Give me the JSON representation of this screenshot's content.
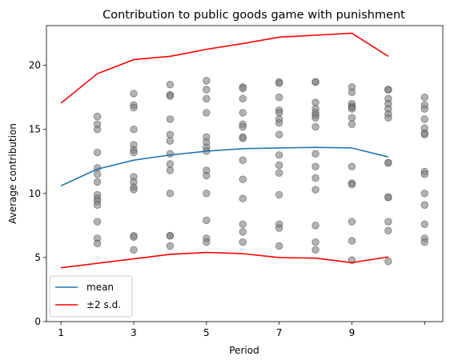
{
  "chart_data": {
    "type": "line",
    "title": "Contribution to public goods game with punishment",
    "xlabel": "Period",
    "ylabel": "Average contribution",
    "xlim": [
      0.6,
      11.5
    ],
    "ylim": [
      0,
      23.1
    ],
    "xticks": [
      1,
      3,
      5,
      7,
      9,
      11
    ],
    "xtick_labels": [
      "1",
      "3",
      "5",
      "7",
      "9",
      ""
    ],
    "yticks": [
      0,
      5,
      10,
      15,
      20
    ],
    "grid": false,
    "legend_position": "lower-left",
    "series": [
      {
        "name": "mean",
        "color": "#1f77b4",
        "x": [
          1,
          2,
          3,
          4,
          5,
          6,
          7,
          8,
          9,
          10
        ],
        "y": [
          10.6,
          11.9,
          12.6,
          13.0,
          13.3,
          13.5,
          13.55,
          13.6,
          13.55,
          12.85
        ]
      },
      {
        "name": "±2 s.d.",
        "color": "#ff0000",
        "x": [
          1,
          2,
          3,
          4,
          5,
          6,
          7,
          8,
          9,
          10
        ],
        "y": [
          17.05,
          19.35,
          20.45,
          20.7,
          21.25,
          21.7,
          22.2,
          22.35,
          22.5,
          20.7
        ]
      },
      {
        "name": "",
        "color": "#ff0000",
        "x": [
          1,
          2,
          3,
          4,
          5,
          6,
          7,
          8,
          9,
          10
        ],
        "y": [
          4.2,
          4.55,
          4.9,
          5.25,
          5.4,
          5.3,
          5.0,
          4.95,
          4.6,
          5.05
        ]
      }
    ],
    "scatter": {
      "color": "#808080",
      "opacity": 0.6,
      "points": [
        [
          2,
          16.0
        ],
        [
          2,
          15.4
        ],
        [
          2,
          15.0
        ],
        [
          2,
          13.2
        ],
        [
          2,
          12.0
        ],
        [
          2,
          11.5
        ],
        [
          2,
          10.9
        ],
        [
          2,
          9.9
        ],
        [
          2,
          9.6
        ],
        [
          2,
          9.4
        ],
        [
          2,
          9.1
        ],
        [
          2,
          7.8
        ],
        [
          2,
          6.5
        ],
        [
          2,
          6.1
        ],
        [
          3,
          17.8
        ],
        [
          3,
          16.9
        ],
        [
          3,
          16.7
        ],
        [
          3,
          15.0
        ],
        [
          3,
          13.8
        ],
        [
          3,
          13.4
        ],
        [
          3,
          13.2
        ],
        [
          3,
          11.3
        ],
        [
          3,
          10.9
        ],
        [
          3,
          10.5
        ],
        [
          3,
          10.3
        ],
        [
          3,
          6.7
        ],
        [
          3,
          6.6
        ],
        [
          3,
          5.6
        ],
        [
          4,
          18.5
        ],
        [
          4,
          17.7
        ],
        [
          4,
          17.6
        ],
        [
          4,
          15.8
        ],
        [
          4,
          14.6
        ],
        [
          4,
          14.1
        ],
        [
          4,
          13.1
        ],
        [
          4,
          12.3
        ],
        [
          4,
          11.8
        ],
        [
          4,
          10.0
        ],
        [
          4,
          6.7
        ],
        [
          4,
          6.7
        ],
        [
          4,
          5.9
        ],
        [
          5,
          18.8
        ],
        [
          5,
          18.1
        ],
        [
          5,
          17.4
        ],
        [
          5,
          16.3
        ],
        [
          5,
          14.4
        ],
        [
          5,
          14.0
        ],
        [
          5,
          13.6
        ],
        [
          5,
          13.3
        ],
        [
          5,
          11.8
        ],
        [
          5,
          11.4
        ],
        [
          5,
          10.0
        ],
        [
          5,
          7.9
        ],
        [
          5,
          6.5
        ],
        [
          5,
          6.2
        ],
        [
          6,
          18.3
        ],
        [
          6,
          18.2
        ],
        [
          6,
          17.4
        ],
        [
          6,
          16.3
        ],
        [
          6,
          15.4
        ],
        [
          6,
          15.2
        ],
        [
          6,
          14.4
        ],
        [
          6,
          14.3
        ],
        [
          6,
          12.6
        ],
        [
          6,
          11.1
        ],
        [
          6,
          9.6
        ],
        [
          6,
          7.6
        ],
        [
          6,
          7.0
        ],
        [
          6,
          6.2
        ],
        [
          7,
          18.7
        ],
        [
          7,
          18.6
        ],
        [
          7,
          17.5
        ],
        [
          7,
          16.5
        ],
        [
          7,
          16.3
        ],
        [
          7,
          15.8
        ],
        [
          7,
          15.5
        ],
        [
          7,
          14.6
        ],
        [
          7,
          13.0
        ],
        [
          7,
          12.2
        ],
        [
          7,
          11.6
        ],
        [
          7,
          9.9
        ],
        [
          7,
          7.6
        ],
        [
          7,
          7.3
        ],
        [
          7,
          5.9
        ],
        [
          8,
          18.7
        ],
        [
          8,
          18.7
        ],
        [
          8,
          17.1
        ],
        [
          8,
          16.6
        ],
        [
          8,
          16.3
        ],
        [
          8,
          16.1
        ],
        [
          8,
          15.9
        ],
        [
          8,
          15.2
        ],
        [
          8,
          13.1
        ],
        [
          8,
          12.1
        ],
        [
          8,
          11.2
        ],
        [
          8,
          10.3
        ],
        [
          8,
          7.5
        ],
        [
          8,
          6.2
        ],
        [
          8,
          5.6
        ],
        [
          9,
          18.3
        ],
        [
          9,
          17.9
        ],
        [
          9,
          17.0
        ],
        [
          9,
          16.8
        ],
        [
          9,
          16.7
        ],
        [
          9,
          16.6
        ],
        [
          9,
          15.9
        ],
        [
          9,
          15.4
        ],
        [
          9,
          12.1
        ],
        [
          9,
          10.8
        ],
        [
          9,
          10.7
        ],
        [
          9,
          7.8
        ],
        [
          9,
          6.3
        ],
        [
          9,
          4.8
        ],
        [
          10,
          18.1
        ],
        [
          10,
          18.1
        ],
        [
          10,
          17.4
        ],
        [
          10,
          17.0
        ],
        [
          10,
          16.6
        ],
        [
          10,
          16.2
        ],
        [
          10,
          15.9
        ],
        [
          10,
          12.4
        ],
        [
          10,
          12.4
        ],
        [
          10,
          9.7
        ],
        [
          10,
          9.7
        ],
        [
          10,
          7.8
        ],
        [
          10,
          7.1
        ],
        [
          10,
          4.7
        ],
        [
          11,
          17.5
        ],
        [
          11,
          16.9
        ],
        [
          11,
          16.6
        ],
        [
          11,
          15.8
        ],
        [
          11,
          15.1
        ],
        [
          11,
          14.7
        ],
        [
          11,
          14.6
        ],
        [
          11,
          11.7
        ],
        [
          11,
          11.5
        ],
        [
          11,
          10.0
        ],
        [
          11,
          9.1
        ],
        [
          11,
          7.6
        ],
        [
          11,
          6.5
        ],
        [
          11,
          6.2
        ]
      ]
    }
  }
}
